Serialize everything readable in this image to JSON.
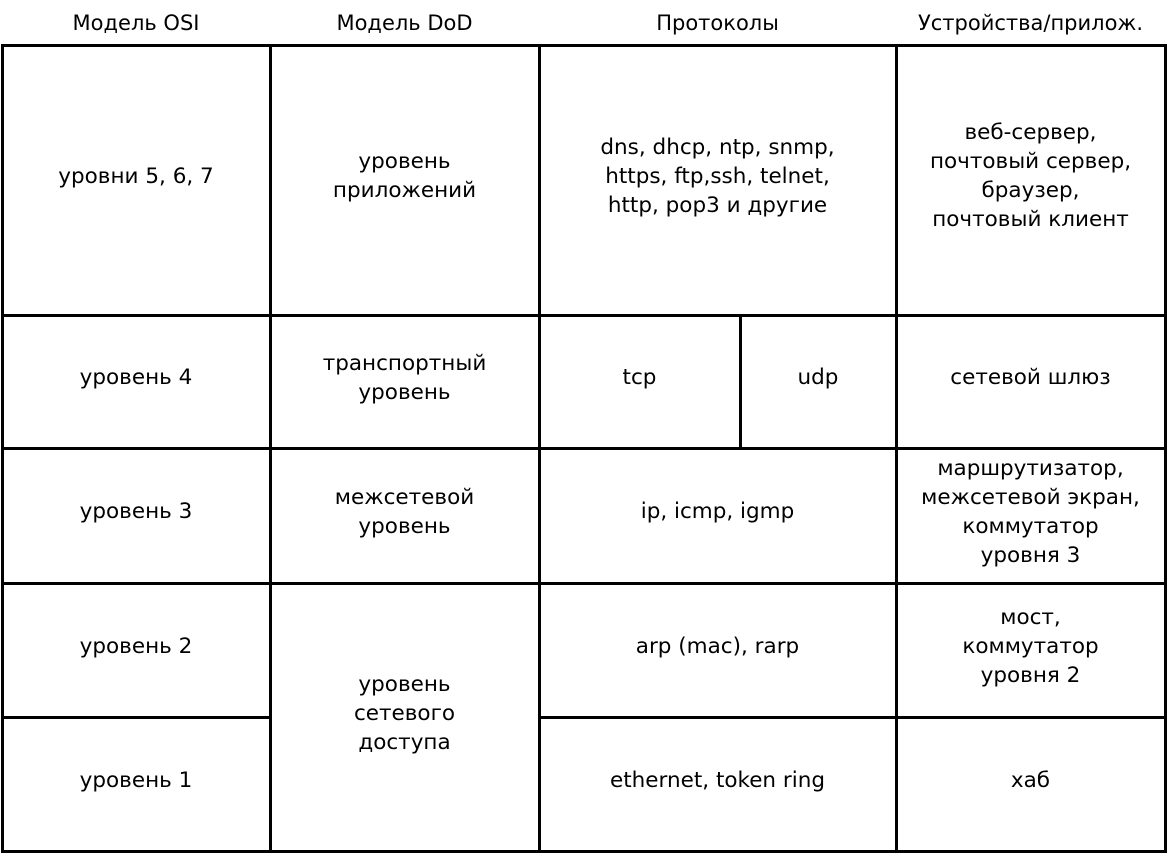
{
  "headers": [
    "Модель OSI",
    "Модель DoD",
    "Протоколы",
    "Устройства/прилож."
  ],
  "cells": [
    {
      "lines": [
        "уровни 5, 6, 7"
      ]
    },
    {
      "lines": [
        "уровень 4"
      ]
    },
    {
      "lines": [
        "уровень 3"
      ]
    },
    {
      "lines": [
        "уровень 2"
      ]
    },
    {
      "lines": [
        "уровень 1"
      ]
    },
    {
      "lines": [
        "уровень",
        "приложений"
      ]
    },
    {
      "lines": [
        "транспортный",
        "уровень"
      ]
    },
    {
      "lines": [
        "межсетевой",
        "уровень"
      ]
    },
    {
      "lines": [
        "уровень",
        "сетевого",
        "доступа"
      ]
    },
    {
      "lines": [
        "dns, dhcp, ntp, snmp,",
        "https, ftp,ssh, telnet,",
        "http, pop3 и другие"
      ]
    },
    {
      "lines": [
        "tcp"
      ]
    },
    {
      "lines": [
        "udp"
      ]
    },
    {
      "lines": [
        "ip, icmp, igmp"
      ]
    },
    {
      "lines": [
        "arp (mac), rarp"
      ]
    },
    {
      "lines": [
        "ethernet, token ring"
      ]
    },
    {
      "lines": [
        "веб-сервер,",
        "почтовый сервер,",
        "браузер,",
        "почтовый клиент"
      ]
    },
    {
      "lines": [
        "сетевой шлюз"
      ]
    },
    {
      "lines": [
        "маршрутизатор,",
        "межсетевой экран,",
        "коммутатор",
        "уровня 3"
      ]
    },
    {
      "lines": [
        "мост,",
        "коммутатор",
        "уровня 2"
      ]
    },
    {
      "lines": [
        "хаб"
      ]
    }
  ]
}
